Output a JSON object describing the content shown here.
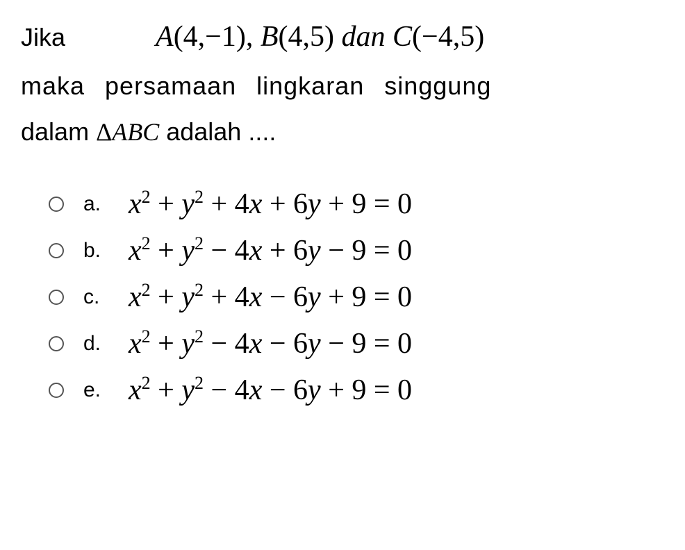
{
  "question": {
    "line1_prefix": "Jika",
    "points": {
      "A_label": "A",
      "A_coords": "(4,−1)",
      "B_label": "B",
      "B_coords": "(4,5)",
      "dan": " dan ",
      "C_label": "C",
      "C_coords": "(−4,5)"
    },
    "line2": "maka persamaan lingkaran singgung",
    "line3_prefix": "dalam ",
    "triangle": "Δ",
    "triangle_label": "ABC",
    "line3_suffix": " adalah ...."
  },
  "options": [
    {
      "label": "a.",
      "x2": "x",
      "plus1": " + ",
      "y2": "y",
      "term1": " + 4",
      "xvar1": "x",
      "term2": " + 6",
      "yvar1": "y",
      "term3": " + 9 = 0"
    },
    {
      "label": "b.",
      "x2": "x",
      "plus1": " + ",
      "y2": "y",
      "term1": " − 4",
      "xvar1": "x",
      "term2": " + 6",
      "yvar1": "y",
      "term3": " − 9 = 0"
    },
    {
      "label": "c.",
      "x2": "x",
      "plus1": " + ",
      "y2": "y",
      "term1": " + 4",
      "xvar1": "x",
      "term2": " − 6",
      "yvar1": "y",
      "term3": " + 9 = 0"
    },
    {
      "label": "d.",
      "x2": "x",
      "plus1": " + ",
      "y2": "y",
      "term1": " − 4",
      "xvar1": "x",
      "term2": " − 6",
      "yvar1": "y",
      "term3": " − 9 = 0"
    },
    {
      "label": "e.",
      "x2": "x",
      "plus1": " + ",
      "y2": "y",
      "term1": " − 4",
      "xvar1": "x",
      "term2": " − 6",
      "yvar1": "y",
      "term3": " + 9 = 0"
    }
  ],
  "styling": {
    "background_color": "#ffffff",
    "text_color": "#000000",
    "radio_border_color": "#555555",
    "question_fontsize": 36,
    "equation_fontsize": 42,
    "option_label_fontsize": 30,
    "font_family_text": "Arial, sans-serif",
    "font_family_math": "Times New Roman, serif"
  }
}
